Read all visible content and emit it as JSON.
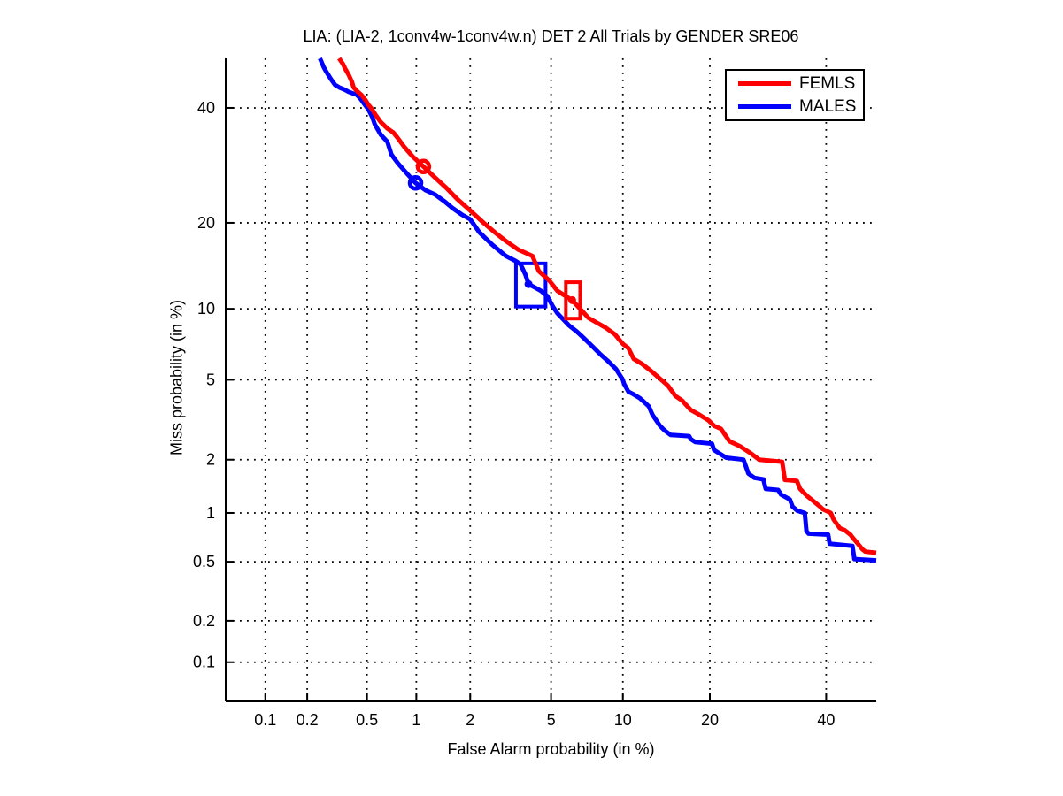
{
  "title": "LIA: (LIA-2, 1conv4w-1conv4w.n) DET 2 All Trials by GENDER SRE06",
  "legend": {
    "position": "upper-right",
    "entries": [
      {
        "label": "FEMLS",
        "color": "#ff0000"
      },
      {
        "label": "MALES",
        "color": "#0000ff"
      }
    ]
  },
  "chart_data": {
    "type": "line",
    "subtype": "DET-curve-probit-probit",
    "title": "LIA: (LIA-2, 1conv4w-1conv4w.n) DET 2 All Trials by GENDER SRE06",
    "xlabel": "False Alarm probability (in %)",
    "ylabel": "Miss probability (in %)",
    "xlim_percent": [
      0.05,
      50
    ],
    "ylim_percent": [
      0.05,
      50
    ],
    "x_ticks": [
      0.1,
      0.2,
      0.5,
      1,
      2,
      5,
      10,
      20,
      40
    ],
    "x_tick_labels": [
      "0.1",
      "0.2",
      "0.5",
      "1",
      "2",
      "5",
      "10",
      "20",
      "40"
    ],
    "y_ticks": [
      0.1,
      0.2,
      0.5,
      1,
      2,
      5,
      10,
      20,
      40
    ],
    "y_tick_labels": [
      "0.1",
      "0.2",
      "0.5",
      "1",
      "2",
      "5",
      "10",
      "20",
      "40"
    ],
    "grid": "dotted",
    "grid_color": "#000000",
    "axis_color": "#000000",
    "background": "#ffffff",
    "legend_position": "upper right",
    "series": [
      {
        "name": "FEMLS",
        "color": "#ff0000",
        "line_width": 5,
        "circle_marker": [
          1.1,
          29.0
        ],
        "opt_box": {
          "fa_range": [
            5.82,
            6.71
          ],
          "miss_range": [
            9.15,
            12.6
          ],
          "dot": [
            6.2,
            10.8
          ]
        },
        "points": [
          [
            0.33,
            50
          ],
          [
            0.35,
            48.8
          ],
          [
            0.36,
            48.0
          ],
          [
            0.38,
            46.7
          ],
          [
            0.4,
            45.2
          ],
          [
            0.41,
            44.1
          ],
          [
            0.43,
            43.4
          ],
          [
            0.46,
            42.6
          ],
          [
            0.49,
            41.5
          ],
          [
            0.51,
            40.6
          ],
          [
            0.53,
            40.0
          ],
          [
            0.57,
            38.5
          ],
          [
            0.61,
            37.2
          ],
          [
            0.67,
            36.0
          ],
          [
            0.73,
            35.2
          ],
          [
            0.77,
            34.3
          ],
          [
            0.85,
            32.5
          ],
          [
            0.95,
            30.8
          ],
          [
            1.1,
            29.0
          ],
          [
            1.25,
            27.4
          ],
          [
            1.49,
            25.3
          ],
          [
            1.7,
            23.6
          ],
          [
            2.0,
            21.8
          ],
          [
            2.35,
            20.0
          ],
          [
            2.7,
            18.6
          ],
          [
            3.05,
            17.5
          ],
          [
            3.5,
            16.4
          ],
          [
            4.1,
            15.6
          ],
          [
            4.4,
            13.8
          ],
          [
            4.9,
            12.8
          ],
          [
            5.34,
            11.7
          ],
          [
            5.8,
            11.2
          ],
          [
            6.2,
            10.8
          ],
          [
            6.78,
            9.9
          ],
          [
            7.28,
            9.2
          ],
          [
            7.9,
            8.8
          ],
          [
            8.56,
            8.4
          ],
          [
            9.3,
            7.9
          ],
          [
            10.0,
            7.2
          ],
          [
            10.5,
            6.9
          ],
          [
            11.0,
            6.2
          ],
          [
            11.8,
            5.9
          ],
          [
            12.7,
            5.5
          ],
          [
            13.6,
            5.1
          ],
          [
            14.1,
            4.9
          ],
          [
            14.6,
            4.7
          ],
          [
            15.5,
            4.2
          ],
          [
            16.3,
            4.0
          ],
          [
            17.4,
            3.6
          ],
          [
            18.6,
            3.4
          ],
          [
            19.8,
            3.2
          ],
          [
            20.6,
            3.0
          ],
          [
            21.6,
            2.9
          ],
          [
            22.9,
            2.5
          ],
          [
            24.6,
            2.35
          ],
          [
            26.4,
            2.15
          ],
          [
            27.7,
            2.0
          ],
          [
            31.7,
            1.95
          ],
          [
            32.2,
            1.55
          ],
          [
            34.4,
            1.53
          ],
          [
            35.0,
            1.38
          ],
          [
            36.4,
            1.25
          ],
          [
            37.3,
            1.19
          ],
          [
            38.5,
            1.11
          ],
          [
            39.4,
            1.05
          ],
          [
            40.9,
            1.0
          ],
          [
            41.5,
            0.91
          ],
          [
            42.7,
            0.81
          ],
          [
            43.6,
            0.79
          ],
          [
            44.8,
            0.74
          ],
          [
            45.4,
            0.7
          ],
          [
            46.3,
            0.65
          ],
          [
            47.2,
            0.6
          ],
          [
            47.8,
            0.58
          ],
          [
            50,
            0.57
          ]
        ]
      },
      {
        "name": "MALES",
        "color": "#0000ff",
        "line_width": 5,
        "circle_marker": [
          0.99,
          26.2
        ],
        "opt_box": {
          "fa_range": [
            3.42,
            4.72
          ],
          "miss_range": [
            10.2,
            14.7
          ],
          "dot": [
            3.93,
            12.4
          ]
        },
        "points": [
          [
            0.245,
            50
          ],
          [
            0.26,
            48.2
          ],
          [
            0.27,
            47.3
          ],
          [
            0.29,
            45.8
          ],
          [
            0.31,
            44.6
          ],
          [
            0.33,
            44.1
          ],
          [
            0.36,
            43.6
          ],
          [
            0.38,
            43.2
          ],
          [
            0.43,
            42.6
          ],
          [
            0.45,
            42.0
          ],
          [
            0.48,
            40.8
          ],
          [
            0.51,
            39.7
          ],
          [
            0.54,
            38.2
          ],
          [
            0.56,
            36.8
          ],
          [
            0.61,
            34.8
          ],
          [
            0.67,
            33.5
          ],
          [
            0.71,
            31.1
          ],
          [
            0.78,
            29.5
          ],
          [
            0.88,
            27.8
          ],
          [
            0.99,
            26.2
          ],
          [
            1.13,
            25.0
          ],
          [
            1.28,
            24.3
          ],
          [
            1.45,
            23.2
          ],
          [
            1.6,
            22.2
          ],
          [
            1.8,
            21.2
          ],
          [
            2.0,
            20.5
          ],
          [
            2.23,
            18.7
          ],
          [
            2.61,
            17.0
          ],
          [
            3.05,
            15.6
          ],
          [
            3.4,
            15.0
          ],
          [
            3.6,
            14.6
          ],
          [
            3.8,
            13.4
          ],
          [
            3.93,
            12.4
          ],
          [
            4.25,
            12.0
          ],
          [
            4.5,
            11.7
          ],
          [
            4.8,
            11.2
          ],
          [
            5.1,
            10.2
          ],
          [
            5.34,
            9.6
          ],
          [
            5.66,
            9.1
          ],
          [
            6.0,
            8.6
          ],
          [
            6.5,
            8.1
          ],
          [
            6.97,
            7.6
          ],
          [
            7.48,
            7.1
          ],
          [
            8.14,
            6.5
          ],
          [
            8.7,
            6.1
          ],
          [
            9.4,
            5.6
          ],
          [
            10.0,
            5.0
          ],
          [
            10.1,
            4.8
          ],
          [
            10.5,
            4.4
          ],
          [
            10.9,
            4.3
          ],
          [
            11.6,
            4.1
          ],
          [
            12.1,
            3.9
          ],
          [
            12.5,
            3.75
          ],
          [
            12.9,
            3.4
          ],
          [
            13.7,
            3.0
          ],
          [
            14.2,
            2.85
          ],
          [
            14.9,
            2.7
          ],
          [
            17.2,
            2.66
          ],
          [
            17.4,
            2.57
          ],
          [
            18.0,
            2.48
          ],
          [
            20.3,
            2.43
          ],
          [
            20.6,
            2.25
          ],
          [
            22.4,
            2.05
          ],
          [
            25.1,
            2.0
          ],
          [
            25.9,
            1.68
          ],
          [
            26.9,
            1.59
          ],
          [
            28.4,
            1.56
          ],
          [
            28.8,
            1.38
          ],
          [
            31.0,
            1.36
          ],
          [
            31.5,
            1.28
          ],
          [
            33.1,
            1.2
          ],
          [
            33.6,
            1.09
          ],
          [
            34.5,
            1.03
          ],
          [
            35.9,
            1.0
          ],
          [
            36.2,
            0.78
          ],
          [
            36.6,
            0.75
          ],
          [
            40.4,
            0.74
          ],
          [
            40.7,
            0.65
          ],
          [
            45.2,
            0.63
          ],
          [
            45.6,
            0.52
          ],
          [
            50,
            0.51
          ]
        ]
      }
    ]
  }
}
